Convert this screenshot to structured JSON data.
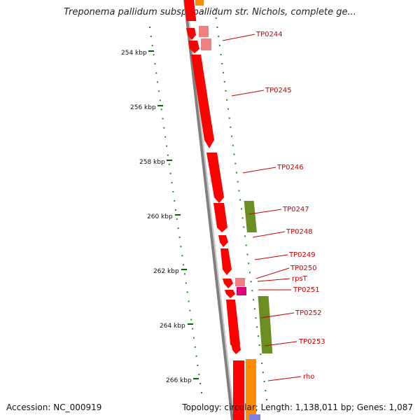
{
  "header": {
    "title": "Treponema pallidum subsp. pallidum str. Nichols, complete ge..."
  },
  "footer": {
    "accession": "Accession: NC_000919",
    "summary": "Topology: circular; Length: 1,138,011 bp; Genes: 1,087"
  },
  "axis": {
    "tick_labels": [
      "254 kbp",
      "256 kbp",
      "258 kbp",
      "260 kbp",
      "262 kbp",
      "264 kbp",
      "266 kbp"
    ]
  },
  "colors": {
    "forward_cds": "#ff0000",
    "reverse_cds_green": "#6b8e23",
    "orange_feature": "#ff8c00",
    "pink_feature": "#f08080",
    "magenta_feature": "#e0007a",
    "backbone": "#808080",
    "tick": "#006400",
    "label": "#cc0000"
  },
  "genes": [
    {
      "id": "TP0244",
      "label": "TP0244"
    },
    {
      "id": "TP0245",
      "label": "TP0245"
    },
    {
      "id": "TP0246",
      "label": "TP0246"
    },
    {
      "id": "TP0247",
      "label": "TP0247"
    },
    {
      "id": "TP0248",
      "label": "TP0248"
    },
    {
      "id": "TP0249",
      "label": "TP0249"
    },
    {
      "id": "TP0250",
      "label": "TP0250"
    },
    {
      "id": "rpsT",
      "label": "rpsT"
    },
    {
      "id": "TP0251",
      "label": "TP0251"
    },
    {
      "id": "TP0252",
      "label": "TP0252"
    },
    {
      "id": "TP0253",
      "label": "TP0253"
    },
    {
      "id": "rho",
      "label": "rho"
    }
  ]
}
